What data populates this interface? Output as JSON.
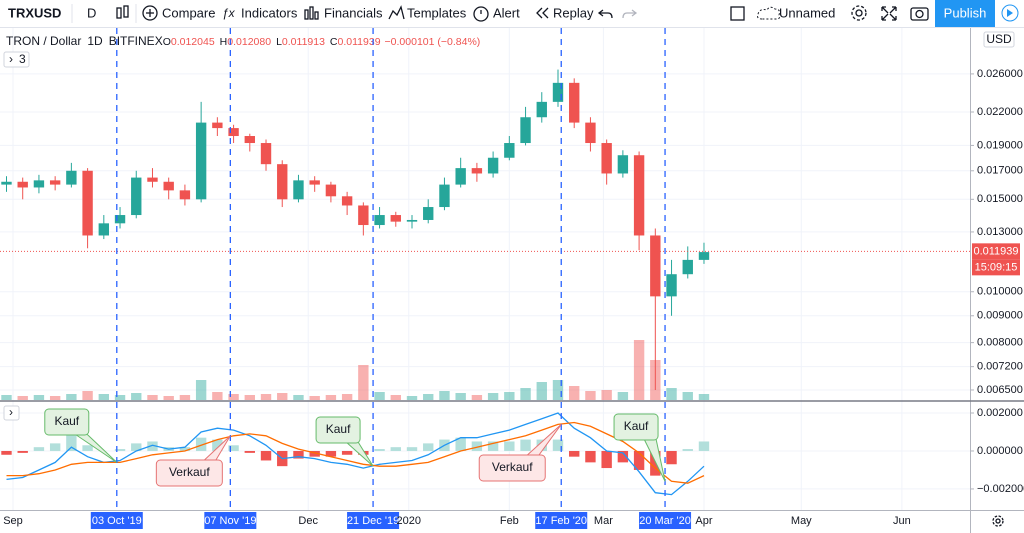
{
  "toolbar": {
    "symbol": "TRXUSD",
    "interval": "D",
    "compare": "Compare",
    "indicators": "Indicators",
    "financials": "Financials",
    "templates": "Templates",
    "alert": "Alert",
    "replay": "Replay",
    "layout_name": "Unnamed",
    "publish": "Publish"
  },
  "legend": {
    "name": "TRON / Dollar",
    "interval": "1D",
    "exchange": "BITFINEX",
    "ohlc": [
      {
        "key": "O",
        "value": "0.012045"
      },
      {
        "key": "H",
        "value": "0.012080"
      },
      {
        "key": "L",
        "value": "0.011913"
      },
      {
        "key": "C",
        "value": "0.011939"
      }
    ],
    "change": "−0.000101 (−0.84%)",
    "collapsed_count": "3",
    "currency": "USD"
  },
  "chart_data": [
    {
      "type": "candlestick",
      "log_scale": true,
      "x": [
        "2019-08-30",
        "2019-09-04",
        "2019-09-09",
        "2019-09-14",
        "2019-09-19",
        "2019-09-24",
        "2019-09-29",
        "2019-10-04",
        "2019-10-09",
        "2019-10-14",
        "2019-10-19",
        "2019-10-24",
        "2019-10-29",
        "2019-11-03",
        "2019-11-08",
        "2019-11-13",
        "2019-11-18",
        "2019-11-23",
        "2019-11-28",
        "2019-12-03",
        "2019-12-08",
        "2019-12-13",
        "2019-12-18",
        "2019-12-23",
        "2019-12-28",
        "2020-01-02",
        "2020-01-07",
        "2020-01-12",
        "2020-01-17",
        "2020-01-22",
        "2020-01-27",
        "2020-02-01",
        "2020-02-06",
        "2020-02-11",
        "2020-02-16",
        "2020-02-21",
        "2020-02-26",
        "2020-03-02",
        "2020-03-07",
        "2020-03-12",
        "2020-03-17",
        "2020-03-22",
        "2020-03-27",
        "2020-04-01"
      ],
      "open": [
        0.016,
        0.0162,
        0.0158,
        0.0163,
        0.016,
        0.017,
        0.0128,
        0.0135,
        0.014,
        0.0165,
        0.0162,
        0.0156,
        0.015,
        0.021,
        0.0205,
        0.0198,
        0.0192,
        0.0175,
        0.015,
        0.0163,
        0.016,
        0.0152,
        0.0146,
        0.0134,
        0.014,
        0.0136,
        0.0137,
        0.0145,
        0.016,
        0.0172,
        0.0168,
        0.018,
        0.0192,
        0.0215,
        0.023,
        0.025,
        0.021,
        0.0192,
        0.0168,
        0.0182,
        0.0128,
        0.0098,
        0.0108,
        0.0115
      ],
      "high": [
        0.0166,
        0.0165,
        0.0167,
        0.0166,
        0.0176,
        0.0172,
        0.014,
        0.0145,
        0.017,
        0.0172,
        0.0165,
        0.016,
        0.023,
        0.0215,
        0.0208,
        0.02,
        0.0195,
        0.0178,
        0.0167,
        0.0166,
        0.0162,
        0.0155,
        0.0148,
        0.0145,
        0.0142,
        0.014,
        0.015,
        0.0165,
        0.018,
        0.0176,
        0.0185,
        0.0198,
        0.0225,
        0.024,
        0.0265,
        0.0255,
        0.0215,
        0.0195,
        0.0186,
        0.0185,
        0.0132,
        0.0115,
        0.0122,
        0.0124
      ],
      "low": [
        0.0155,
        0.015,
        0.0154,
        0.0156,
        0.0158,
        0.0121,
        0.0126,
        0.0132,
        0.0138,
        0.0158,
        0.015,
        0.0146,
        0.0148,
        0.0198,
        0.0192,
        0.0185,
        0.017,
        0.0145,
        0.0148,
        0.0155,
        0.0148,
        0.014,
        0.0128,
        0.0132,
        0.0133,
        0.0132,
        0.0135,
        0.0143,
        0.0158,
        0.0162,
        0.0165,
        0.0178,
        0.019,
        0.021,
        0.0225,
        0.0205,
        0.0185,
        0.016,
        0.0165,
        0.012,
        0.0065,
        0.009,
        0.0106,
        0.0113
      ],
      "close": [
        0.0162,
        0.0158,
        0.0163,
        0.016,
        0.017,
        0.0128,
        0.0135,
        0.014,
        0.0165,
        0.0162,
        0.0156,
        0.015,
        0.021,
        0.0205,
        0.0198,
        0.0192,
        0.0175,
        0.015,
        0.0163,
        0.016,
        0.0152,
        0.0146,
        0.0134,
        0.014,
        0.0136,
        0.0137,
        0.0145,
        0.016,
        0.0172,
        0.0168,
        0.018,
        0.0192,
        0.0215,
        0.023,
        0.025,
        0.021,
        0.0192,
        0.0168,
        0.0182,
        0.0128,
        0.0098,
        0.0108,
        0.0115,
        0.0119
      ],
      "volume": [
        5,
        4,
        5,
        4,
        6,
        9,
        6,
        5,
        7,
        5,
        4,
        5,
        20,
        8,
        6,
        5,
        6,
        7,
        5,
        4,
        5,
        6,
        35,
        8,
        5,
        4,
        6,
        9,
        7,
        5,
        7,
        8,
        12,
        18,
        20,
        14,
        9,
        10,
        8,
        60,
        40,
        12,
        8,
        6
      ],
      "up_color": "#26a69a",
      "down_color": "#ef5350",
      "xlim": [
        "2019-08-28",
        "2020-06-22"
      ],
      "xticks": [
        {
          "value": "2019-09-01",
          "label": "Sep"
        },
        {
          "value": "2019-12-01",
          "label": "Dec"
        },
        {
          "value": "2020-01-01",
          "label": "2020"
        },
        {
          "value": "2020-02-01",
          "label": "Feb"
        },
        {
          "value": "2020-03-01",
          "label": "Mar"
        },
        {
          "value": "2020-04-01",
          "label": "Apr"
        },
        {
          "value": "2020-05-01",
          "label": "May"
        },
        {
          "value": "2020-06-01",
          "label": "Jun"
        }
      ],
      "ylim": [
        0.00622,
        0.0318
      ],
      "yticks": [
        {
          "value": 0.026,
          "label": "0.026000"
        },
        {
          "value": 0.022,
          "label": "0.022000"
        },
        {
          "value": 0.019,
          "label": "0.019000"
        },
        {
          "value": 0.017,
          "label": "0.017000"
        },
        {
          "value": 0.015,
          "label": "0.015000"
        },
        {
          "value": 0.013,
          "label": "0.013000"
        },
        {
          "value": 0.01,
          "label": "0.010000"
        },
        {
          "value": 0.009,
          "label": "0.009000"
        },
        {
          "value": 0.008,
          "label": "0.008000"
        },
        {
          "value": 0.0072,
          "label": "0.007200"
        },
        {
          "value": 0.0065,
          "label": "0.006500"
        }
      ],
      "last_price": {
        "value": 0.011939,
        "label": "0.011939"
      },
      "countdown": "15:09:15",
      "markers": [
        {
          "date": "2019-10-03",
          "label": "03 Oct '19"
        },
        {
          "date": "2019-11-07",
          "label": "07 Nov '19"
        },
        {
          "date": "2019-12-21",
          "label": "21 Dec '19"
        },
        {
          "date": "2020-02-17",
          "label": "17 Feb '20"
        },
        {
          "date": "2020-03-20",
          "label": "20 Mar '20"
        }
      ]
    },
    {
      "type": "macd",
      "x": [
        "2019-08-30",
        "2019-09-04",
        "2019-09-09",
        "2019-09-14",
        "2019-09-19",
        "2019-09-24",
        "2019-09-29",
        "2019-10-04",
        "2019-10-09",
        "2019-10-14",
        "2019-10-19",
        "2019-10-24",
        "2019-10-29",
        "2019-11-03",
        "2019-11-08",
        "2019-11-13",
        "2019-11-18",
        "2019-11-23",
        "2019-11-28",
        "2019-12-03",
        "2019-12-08",
        "2019-12-13",
        "2019-12-18",
        "2019-12-23",
        "2019-12-28",
        "2020-01-02",
        "2020-01-07",
        "2020-01-12",
        "2020-01-17",
        "2020-01-22",
        "2020-01-27",
        "2020-02-01",
        "2020-02-06",
        "2020-02-11",
        "2020-02-16",
        "2020-02-21",
        "2020-02-26",
        "2020-03-02",
        "2020-03-07",
        "2020-03-12",
        "2020-03-17",
        "2020-03-22",
        "2020-03-27",
        "2020-04-01"
      ],
      "series": [
        {
          "color": "#2196f3",
          "values": [
            -0.0015,
            -0.0014,
            -0.001,
            -0.0006,
            0.0002,
            -0.0003,
            -0.0006,
            -0.0005,
            0.0,
            0.0003,
            0.0001,
            0.0002,
            0.001,
            0.0012,
            0.0011,
            0.0008,
            0.0003,
            -0.0004,
            -0.0003,
            -0.0004,
            -0.0006,
            -0.0007,
            -0.0009,
            -0.0007,
            -0.0006,
            -0.0005,
            -0.0002,
            0.0003,
            0.0007,
            0.0007,
            0.0009,
            0.0011,
            0.0014,
            0.0017,
            0.002,
            0.0012,
            0.0007,
            0.0,
            -0.0001,
            -0.0011,
            -0.0022,
            -0.0023,
            -0.0016,
            -0.0008
          ]
        },
        {
          "color": "#ff6d00",
          "values": [
            -0.0013,
            -0.0013,
            -0.0012,
            -0.001,
            -0.0007,
            -0.0006,
            -0.0006,
            -0.0006,
            -0.0004,
            -0.0002,
            -0.0001,
            0.0,
            0.0003,
            0.0006,
            0.0008,
            0.0009,
            0.0008,
            0.0004,
            0.0001,
            -0.0001,
            -0.0003,
            -0.0005,
            -0.0007,
            -0.0008,
            -0.0008,
            -0.0007,
            -0.0006,
            -0.0003,
            0.0,
            0.0002,
            0.0004,
            0.0006,
            0.0008,
            0.0011,
            0.0014,
            0.0015,
            0.0013,
            0.0009,
            0.0005,
            -0.0001,
            -0.0009,
            -0.0016,
            -0.0017,
            -0.0013
          ]
        }
      ],
      "histogram": [
        -0.0002,
        -0.0001,
        0.0002,
        0.0004,
        0.0009,
        0.0003,
        0.0,
        0.0001,
        0.0004,
        0.0005,
        0.0002,
        0.0002,
        0.0007,
        0.0006,
        0.0003,
        -0.0001,
        -0.0005,
        -0.0008,
        -0.0004,
        -0.0003,
        -0.0003,
        -0.0002,
        -0.0002,
        0.0001,
        0.0002,
        0.0002,
        0.0004,
        0.0006,
        0.0007,
        0.0005,
        0.0005,
        0.0005,
        0.0006,
        0.0006,
        0.0006,
        -0.0003,
        -0.0006,
        -0.0009,
        -0.0006,
        -0.001,
        -0.0013,
        -0.0007,
        0.0001,
        0.0005
      ],
      "histogram_colors": [
        "#b2dfdb",
        "#ef5350"
      ],
      "ylim": [
        -0.00311,
        0.00258
      ],
      "yticks": [
        {
          "value": 0.002,
          "label": "0.002000"
        },
        {
          "value": 0,
          "label": "0.000000"
        },
        {
          "value": -0.002,
          "label": "−0.002000"
        }
      ],
      "annotations": [
        {
          "text": "Kauf",
          "date": "2019-10-03"
        },
        {
          "text": "Verkauf",
          "date": "2019-11-07"
        },
        {
          "text": "Kauf",
          "date": "2019-12-21"
        },
        {
          "text": "Verkauf",
          "date": "2020-02-17"
        },
        {
          "text": "Kauf",
          "date": "2020-03-20"
        }
      ]
    }
  ]
}
